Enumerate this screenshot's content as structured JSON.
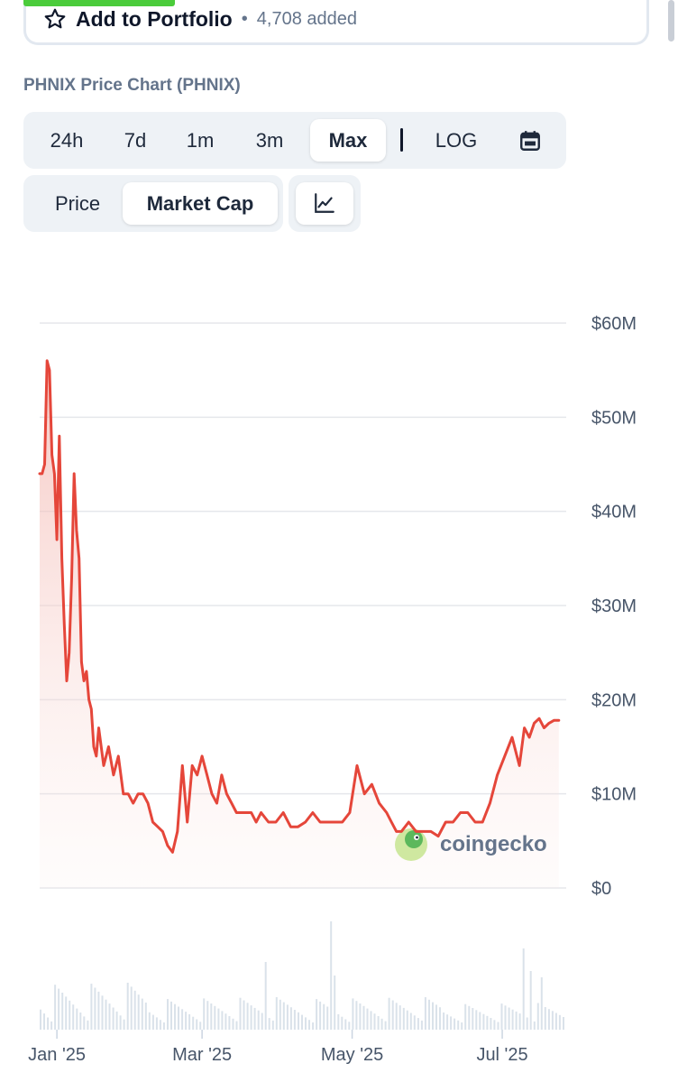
{
  "portfolio": {
    "label": "Add to Portfolio",
    "separator": "•",
    "count": "4,708 added"
  },
  "chart_title": "PHNIX Price Chart (PHNIX)",
  "range_tabs": [
    {
      "label": "24h",
      "active": false
    },
    {
      "label": "7d",
      "active": false
    },
    {
      "label": "1m",
      "active": false
    },
    {
      "label": "3m",
      "active": false
    },
    {
      "label": "Max",
      "active": true
    }
  ],
  "log_label": "LOG",
  "type_tabs": [
    {
      "label": "Price",
      "active": false
    },
    {
      "label": "Market Cap",
      "active": true
    }
  ],
  "watermark": "coingecko",
  "colors": {
    "line": "#e5463a",
    "fill": "#f8d4d0",
    "volume": "#cbd5e1",
    "grid": "#e5e7eb",
    "accent": "#4bcc3b"
  },
  "chart_data": {
    "type": "area",
    "x_axis": "date",
    "xlim": [
      "2024-12-25",
      "2025-07-27"
    ],
    "ylim": [
      0,
      60
    ],
    "y_unit": "$M",
    "y_ticks": [
      "$0",
      "$10M",
      "$20M",
      "$30M",
      "$40M",
      "$50M",
      "$60M"
    ],
    "x_ticks": [
      {
        "date": "2025-01-01",
        "label": "Jan '25"
      },
      {
        "date": "2025-03-01",
        "label": "Mar '25"
      },
      {
        "date": "2025-05-01",
        "label": "May '25"
      },
      {
        "date": "2025-07-01",
        "label": "Jul '25"
      }
    ],
    "grid": true,
    "series": [
      {
        "type": "area",
        "x": [
          "2024-12-25",
          "2024-12-26",
          "2024-12-27",
          "2024-12-28",
          "2024-12-29",
          "2024-12-30",
          "2024-12-31",
          "2025-01-01",
          "2025-01-02",
          "2025-01-03",
          "2025-01-04",
          "2025-01-05",
          "2025-01-06",
          "2025-01-07",
          "2025-01-08",
          "2025-01-09",
          "2025-01-10",
          "2025-01-11",
          "2025-01-12",
          "2025-01-13",
          "2025-01-14",
          "2025-01-15",
          "2025-01-16",
          "2025-01-17",
          "2025-01-18",
          "2025-01-20",
          "2025-01-22",
          "2025-01-24",
          "2025-01-26",
          "2025-01-28",
          "2025-01-30",
          "2025-02-01",
          "2025-02-03",
          "2025-02-05",
          "2025-02-07",
          "2025-02-09",
          "2025-02-11",
          "2025-02-13",
          "2025-02-15",
          "2025-02-17",
          "2025-02-19",
          "2025-02-21",
          "2025-02-23",
          "2025-02-25",
          "2025-02-27",
          "2025-03-01",
          "2025-03-03",
          "2025-03-05",
          "2025-03-07",
          "2025-03-09",
          "2025-03-11",
          "2025-03-13",
          "2025-03-15",
          "2025-03-17",
          "2025-03-19",
          "2025-03-21",
          "2025-03-23",
          "2025-03-25",
          "2025-03-28",
          "2025-03-31",
          "2025-04-03",
          "2025-04-06",
          "2025-04-09",
          "2025-04-12",
          "2025-04-15",
          "2025-04-18",
          "2025-04-21",
          "2025-04-24",
          "2025-04-27",
          "2025-04-30",
          "2025-05-03",
          "2025-05-06",
          "2025-05-09",
          "2025-05-12",
          "2025-05-15",
          "2025-05-17",
          "2025-05-19",
          "2025-05-21",
          "2025-05-24",
          "2025-05-27",
          "2025-05-30",
          "2025-06-02",
          "2025-06-05",
          "2025-06-08",
          "2025-06-11",
          "2025-06-14",
          "2025-06-17",
          "2025-06-20",
          "2025-06-23",
          "2025-06-26",
          "2025-06-29",
          "2025-07-02",
          "2025-07-05",
          "2025-07-08",
          "2025-07-10",
          "2025-07-12",
          "2025-07-14",
          "2025-07-16",
          "2025-07-18",
          "2025-07-20",
          "2025-07-22",
          "2025-07-24"
        ],
        "values": [
          44,
          44,
          45,
          56,
          55,
          46,
          44,
          37,
          48,
          35,
          28,
          22,
          25,
          33,
          44,
          38,
          35,
          24,
          22,
          23,
          20,
          19,
          15,
          14,
          17,
          13,
          15,
          12,
          14,
          10,
          10,
          9,
          10,
          10,
          9,
          7,
          6.5,
          6,
          4.5,
          3.8,
          6,
          13,
          7,
          13,
          12,
          14,
          12,
          10,
          9,
          12,
          10,
          9,
          8,
          8,
          8,
          8,
          7,
          8,
          7,
          7,
          8,
          6.5,
          6.5,
          7,
          8,
          7,
          7,
          7,
          7,
          8,
          13,
          10,
          11,
          9,
          8,
          7,
          6,
          6,
          7,
          6,
          6,
          6,
          5.5,
          7,
          7,
          8,
          8,
          7,
          7,
          9,
          12,
          14,
          16,
          13,
          17,
          16,
          17.5,
          18,
          17,
          17.5,
          17.8,
          17.8
        ]
      }
    ]
  }
}
